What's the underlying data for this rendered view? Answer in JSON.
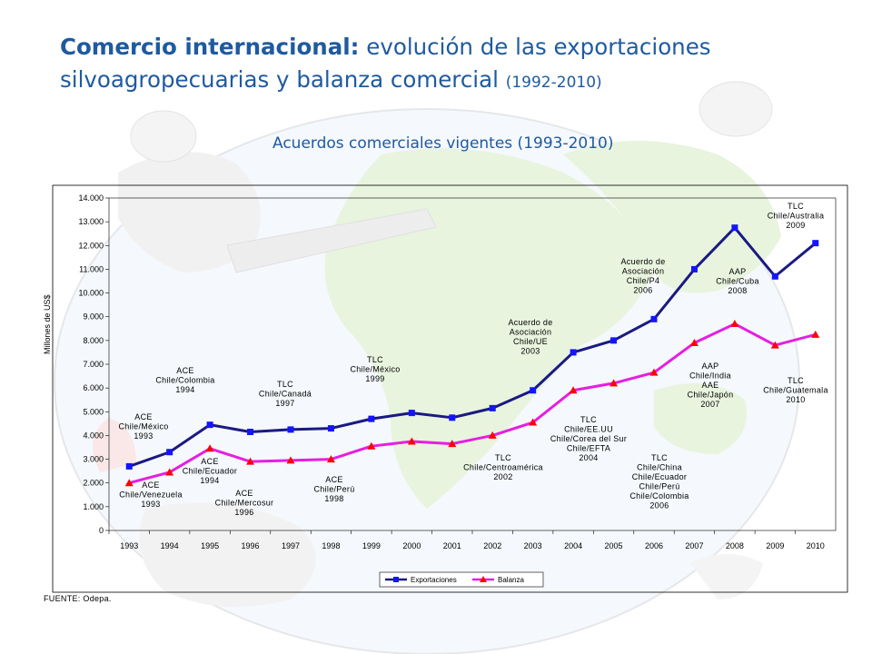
{
  "title": {
    "bold": "Comercio internacional:",
    "main": " evolución de las exportaciones silvoagropecuarias y balanza comercial ",
    "years": "(1992-2010)"
  },
  "subtitle": "Acuerdos comerciales vigentes (1993-2010)",
  "source": "FUENTE: Odepa.",
  "colors": {
    "exportaciones": "#1a1a80",
    "balanza": "#e61ee0",
    "marker_exp": "#1414ff",
    "marker_bal": "#ff0000"
  },
  "chart_data": {
    "type": "line",
    "title": "",
    "xlabel": "",
    "ylabel": "Millones de US$",
    "ylim": [
      0,
      14000
    ],
    "yticks": [
      "0",
      "1.000",
      "2.000",
      "3.000",
      "4.000",
      "5.000",
      "6.000",
      "7.000",
      "8.000",
      "9.000",
      "10.000",
      "11.000",
      "12.000",
      "13.000",
      "14.000"
    ],
    "categories": [
      "1993",
      "1994",
      "1995",
      "1996",
      "1997",
      "1998",
      "1999",
      "2000",
      "2001",
      "2002",
      "2003",
      "2004",
      "2005",
      "2006",
      "2007",
      "2008",
      "2009",
      "2010"
    ],
    "series": [
      {
        "name": "Exportaciones",
        "values": [
          2700,
          3300,
          4450,
          4150,
          4250,
          4300,
          4700,
          4950,
          4750,
          5150,
          5900,
          7500,
          8000,
          8900,
          11000,
          12750,
          10700,
          12100
        ]
      },
      {
        "name": "Balanza",
        "values": [
          2000,
          2450,
          3450,
          2900,
          2950,
          3000,
          3550,
          3750,
          3650,
          4000,
          4550,
          5900,
          6200,
          6650,
          7900,
          8700,
          7800,
          8250
        ]
      }
    ],
    "legend": "bottom",
    "annotations": [
      {
        "lines": [
          "ACE",
          "Chile/Venezuela",
          "1993"
        ]
      },
      {
        "lines": [
          "ACE",
          "Chile/México",
          "1993"
        ]
      },
      {
        "lines": [
          "ACE",
          "Chile/Colombia",
          "1994"
        ]
      },
      {
        "lines": [
          "ACE",
          "Chile/Ecuador",
          "1994"
        ]
      },
      {
        "lines": [
          "ACE",
          "Chile/Mercosur",
          "1996"
        ]
      },
      {
        "lines": [
          "TLC",
          "Chile/Canadá",
          "1997"
        ]
      },
      {
        "lines": [
          "ACE",
          "Chile/Perú",
          "1998"
        ]
      },
      {
        "lines": [
          "TLC",
          "Chile/México",
          "1999"
        ]
      },
      {
        "lines": [
          "TLC",
          "Chile/Centroamérica",
          "2002"
        ]
      },
      {
        "lines": [
          "Acuerdo de",
          "Asociación",
          "Chile/UE",
          "2003"
        ]
      },
      {
        "lines": [
          "TLC",
          "Chile/EE.UU",
          "Chile/Corea del Sur",
          "Chile/EFTA",
          "2004"
        ]
      },
      {
        "lines": [
          "TLC",
          "Chile/China",
          "Chile/Ecuador",
          "Chile/Perú",
          "Chile/Colombia",
          "2006"
        ]
      },
      {
        "lines": [
          "Acuerdo de",
          "Asociación",
          "Chile/P4",
          "2006"
        ]
      },
      {
        "lines": [
          "AAP",
          "Chile/India",
          "AAE",
          "Chile/Japón",
          "2007"
        ]
      },
      {
        "lines": [
          "AAP",
          "Chile/Cuba",
          "2008"
        ]
      },
      {
        "lines": [
          "TLC",
          "Chile/Australia",
          "2009"
        ]
      },
      {
        "lines": [
          "TLC",
          "Chile/Guatemala",
          "2010"
        ]
      }
    ]
  }
}
